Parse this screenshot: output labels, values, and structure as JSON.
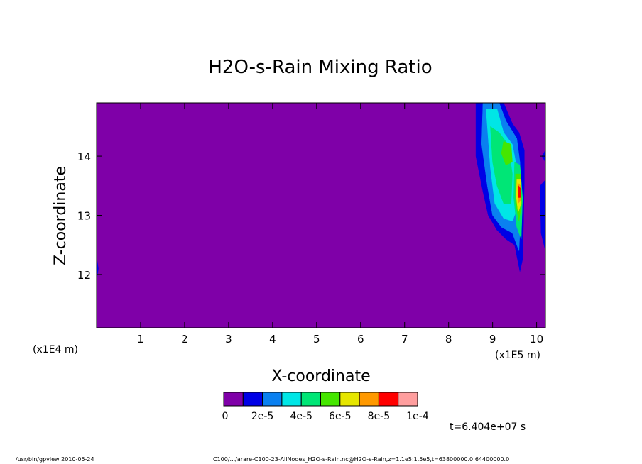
{
  "chart_data": {
    "type": "heatmap",
    "title": "H2O-s-Rain Mixing Ratio",
    "xlabel": "X-coordinate",
    "ylabel": "Z-coordinate",
    "x_scale_left": "(x1E4 m)",
    "x_scale_right": "(x1E5 m)",
    "x_ticks": [
      "1",
      "2",
      "3",
      "4",
      "5",
      "6",
      "7",
      "8",
      "9",
      "10"
    ],
    "y_ticks": [
      "12",
      "13",
      "14"
    ],
    "ylim": [
      11.1,
      14.9
    ],
    "colorbar": {
      "colors": [
        "#7f00a8",
        "#0000e6",
        "#0a80f0",
        "#00e6e6",
        "#00e676",
        "#45e600",
        "#e6e600",
        "#ff9900",
        "#ff0000",
        "#ff9e9e"
      ],
      "labels": [
        "0",
        "2e-5",
        "4e-5",
        "6e-5",
        "8e-5",
        "1e-4"
      ]
    },
    "background_level": 0,
    "cells": [
      {
        "x": 9.05,
        "z": 13.75,
        "level": 1
      },
      {
        "x": 9.2,
        "z": 14.0,
        "level": 2
      },
      {
        "x": 9.3,
        "z": 13.4,
        "level": 3
      },
      {
        "x": 9.35,
        "z": 13.9,
        "level": 4
      },
      {
        "x": 9.4,
        "z": 14.05,
        "level": 5
      },
      {
        "x": 9.5,
        "z": 13.2,
        "level": 4
      },
      {
        "x": 9.6,
        "z": 13.4,
        "level": 6
      },
      {
        "x": 9.62,
        "z": 13.35,
        "level": 8
      }
    ]
  },
  "time_label": "t=6.404e+07 s",
  "footer": {
    "left": "/usr/bin/gpview  2010-05-24",
    "right": "C100/.../arare-C100-23-AllNodes_H2O-s-Rain.nc@H2O-s-Rain,z=1.1e5:1.5e5,t=63800000.0:64400000.0"
  }
}
